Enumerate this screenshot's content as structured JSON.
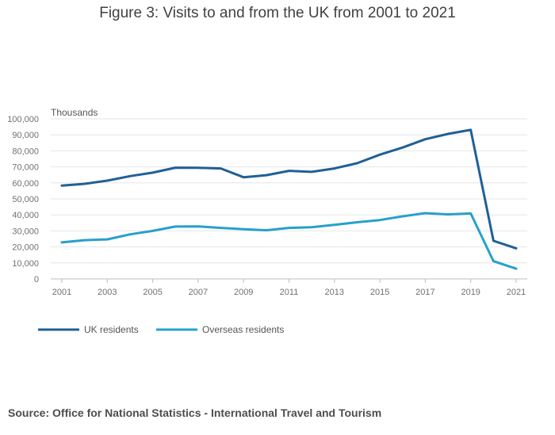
{
  "chart_data": {
    "type": "line",
    "title": "Figure 3: Visits to and from the UK from 2001 to 2021",
    "ylabel": "Thousands",
    "xlabel": "",
    "x": [
      2001,
      2002,
      2003,
      2004,
      2005,
      2006,
      2007,
      2008,
      2009,
      2010,
      2011,
      2012,
      2013,
      2014,
      2015,
      2016,
      2017,
      2018,
      2019,
      2020,
      2021
    ],
    "xticks": [
      "2001",
      "2003",
      "2005",
      "2007",
      "2009",
      "2011",
      "2013",
      "2015",
      "2017",
      "2019",
      "2021"
    ],
    "yticks": [
      "0",
      "10,000",
      "20,000",
      "30,000",
      "40,000",
      "50,000",
      "60,000",
      "70,000",
      "80,000",
      "90,000",
      "100,000"
    ],
    "ylim": [
      0,
      100000
    ],
    "grid": true,
    "legend_position": "bottom-left",
    "series": [
      {
        "name": "UK residents",
        "color": "#206095",
        "values": [
          58300,
          59400,
          61400,
          64200,
          66400,
          69500,
          69400,
          69000,
          63500,
          64800,
          67500,
          66900,
          69000,
          72300,
          77600,
          82100,
          87300,
          90600,
          93100,
          23800,
          19100
        ]
      },
      {
        "name": "Overseas residents",
        "color": "#27a0cc",
        "values": [
          22800,
          24200,
          24700,
          27800,
          30000,
          32700,
          32800,
          31900,
          31100,
          30400,
          31900,
          32300,
          33800,
          35400,
          36800,
          39100,
          41100,
          40300,
          40900,
          11100,
          6400
        ]
      }
    ]
  },
  "source": "Source: Office for National Statistics - International Travel and Tourism"
}
